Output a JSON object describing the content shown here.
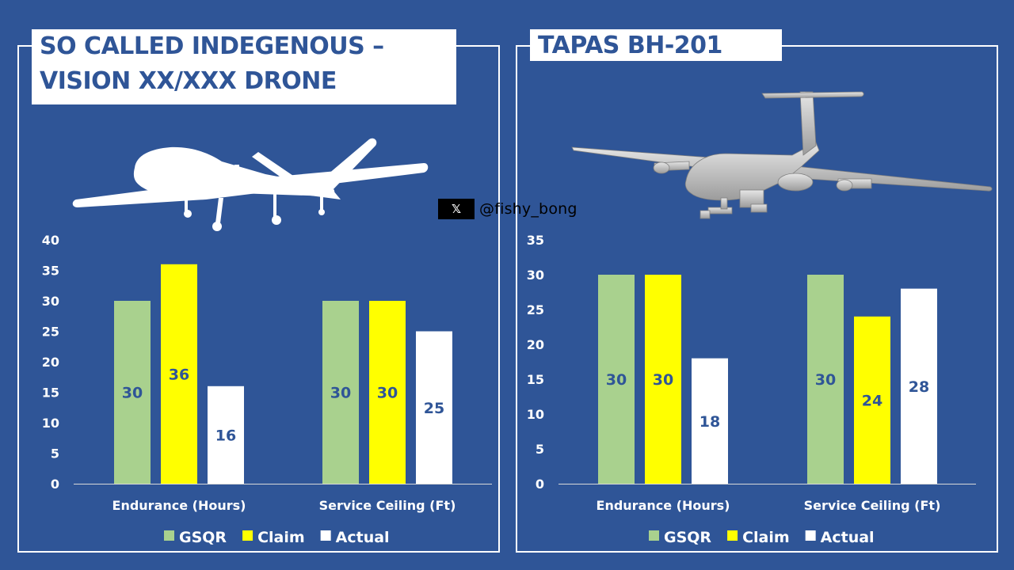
{
  "handle": {
    "icon": "x-logo-icon",
    "logo_text": "𝕏",
    "text": "@fishy_bong"
  },
  "colors": {
    "background": "#2f5597",
    "gsqr": "#a9d18e",
    "claim": "#ffff00",
    "actual": "#ffffff"
  },
  "panels": [
    {
      "title_lines": [
        "SO CALLED INDEGENOUS –",
        "VISION XX/XXX DRONE"
      ],
      "illustration": "drone-silhouette-icon"
    },
    {
      "title_lines": [
        "TAPAS BH-201"
      ],
      "illustration": "tapas-drone-render-icon"
    }
  ],
  "chart_data": [
    {
      "type": "bar",
      "title": "SO CALLED INDEGENOUS – VISION XX/XXX DRONE",
      "categories": [
        "Endurance (Hours)",
        "Service Ceiling (Ft)"
      ],
      "series": [
        {
          "name": "GSQR",
          "values": [
            30,
            30
          ]
        },
        {
          "name": "Claim",
          "values": [
            36,
            30
          ]
        },
        {
          "name": "Actual",
          "values": [
            16,
            25
          ]
        }
      ],
      "yticks": [
        0,
        5,
        10,
        15,
        20,
        25,
        30,
        35,
        40
      ],
      "ylim": [
        0,
        40
      ],
      "legend": "bottom",
      "grid": false
    },
    {
      "type": "bar",
      "title": "TAPAS BH-201",
      "categories": [
        "Endurance (Hours)",
        "Service Ceiling (Ft)"
      ],
      "series": [
        {
          "name": "GSQR",
          "values": [
            30,
            30
          ]
        },
        {
          "name": "Claim",
          "values": [
            30,
            24
          ]
        },
        {
          "name": "Actual",
          "values": [
            18,
            28
          ]
        }
      ],
      "yticks": [
        0,
        5,
        10,
        15,
        20,
        25,
        30,
        35
      ],
      "ylim": [
        0,
        35
      ],
      "legend": "bottom",
      "grid": false
    }
  ]
}
